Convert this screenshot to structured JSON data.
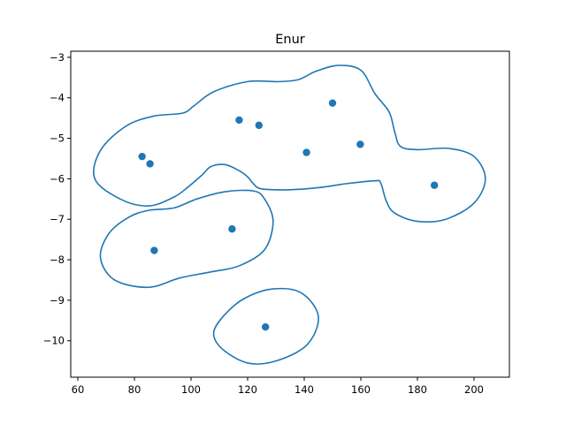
{
  "chart_data": {
    "type": "scatter",
    "title": "Enur",
    "xlabel": "",
    "ylabel": "",
    "xlim": [
      57.5,
      212.5
    ],
    "ylim": [
      -10.9,
      -2.85
    ],
    "xticks": [
      60,
      80,
      100,
      120,
      140,
      160,
      180,
      200
    ],
    "yticks": [
      -3,
      -4,
      -5,
      -6,
      -7,
      -8,
      -9,
      -10
    ],
    "tick_labels": {
      "x": [
        "60",
        "80",
        "100",
        "120",
        "140",
        "160",
        "180",
        "200"
      ],
      "y": [
        "−3",
        "−4",
        "−5",
        "−6",
        "−7",
        "−8",
        "−9",
        "−10"
      ]
    },
    "grid": false,
    "color": "#1f77b4",
    "points": [
      {
        "x": 82.7,
        "y": -5.45
      },
      {
        "x": 85.5,
        "y": -5.63
      },
      {
        "x": 87.0,
        "y": -7.77
      },
      {
        "x": 114.5,
        "y": -7.24
      },
      {
        "x": 117.0,
        "y": -4.55
      },
      {
        "x": 124.0,
        "y": -4.68
      },
      {
        "x": 126.3,
        "y": -9.66
      },
      {
        "x": 140.8,
        "y": -5.35
      },
      {
        "x": 150.0,
        "y": -4.13
      },
      {
        "x": 159.8,
        "y": -5.15
      },
      {
        "x": 186.0,
        "y": -6.16
      }
    ],
    "contours": [
      [
        [
          85,
          -6.67
        ],
        [
          75,
          -6.5
        ],
        [
          66,
          -6.0
        ],
        [
          68,
          -5.3
        ],
        [
          77,
          -4.7
        ],
        [
          87,
          -4.45
        ],
        [
          97,
          -4.38
        ],
        [
          101,
          -4.2
        ],
        [
          108,
          -3.85
        ],
        [
          120,
          -3.6
        ],
        [
          131,
          -3.6
        ],
        [
          138,
          -3.55
        ],
        [
          144,
          -3.35
        ],
        [
          152,
          -3.2
        ],
        [
          160,
          -3.32
        ],
        [
          165,
          -3.9
        ],
        [
          170,
          -4.35
        ],
        [
          172,
          -4.85
        ],
        [
          174,
          -5.2
        ],
        [
          180,
          -5.28
        ],
        [
          191,
          -5.25
        ],
        [
          200,
          -5.45
        ],
        [
          204,
          -6.0
        ],
        [
          200,
          -6.6
        ],
        [
          190,
          -7.0
        ],
        [
          180,
          -7.05
        ],
        [
          172,
          -6.85
        ],
        [
          169,
          -6.55
        ],
        [
          167,
          -6.1
        ],
        [
          165,
          -6.05
        ],
        [
          155,
          -6.12
        ],
        [
          145,
          -6.22
        ],
        [
          135,
          -6.27
        ],
        [
          125,
          -6.25
        ],
        [
          122,
          -6.12
        ],
        [
          120,
          -5.95
        ],
        [
          117,
          -5.8
        ],
        [
          112,
          -5.65
        ],
        [
          107,
          -5.7
        ],
        [
          104,
          -5.9
        ],
        [
          99,
          -6.2
        ],
        [
          94,
          -6.45
        ]
      ],
      [
        [
          85,
          -6.78
        ],
        [
          94,
          -6.72
        ],
        [
          102,
          -6.5
        ],
        [
          112,
          -6.32
        ],
        [
          122,
          -6.3
        ],
        [
          126,
          -6.5
        ],
        [
          129,
          -7.05
        ],
        [
          126,
          -7.75
        ],
        [
          117,
          -8.15
        ],
        [
          107,
          -8.3
        ],
        [
          96,
          -8.45
        ],
        [
          85,
          -8.68
        ],
        [
          73,
          -8.5
        ],
        [
          68,
          -7.95
        ],
        [
          71,
          -7.35
        ],
        [
          78,
          -6.95
        ]
      ],
      [
        [
          129,
          -8.72
        ],
        [
          139,
          -8.82
        ],
        [
          145,
          -9.4
        ],
        [
          141,
          -10.1
        ],
        [
          130,
          -10.5
        ],
        [
          120,
          -10.55
        ],
        [
          111,
          -10.2
        ],
        [
          108,
          -9.8
        ],
        [
          112,
          -9.35
        ],
        [
          119,
          -8.95
        ]
      ]
    ]
  }
}
